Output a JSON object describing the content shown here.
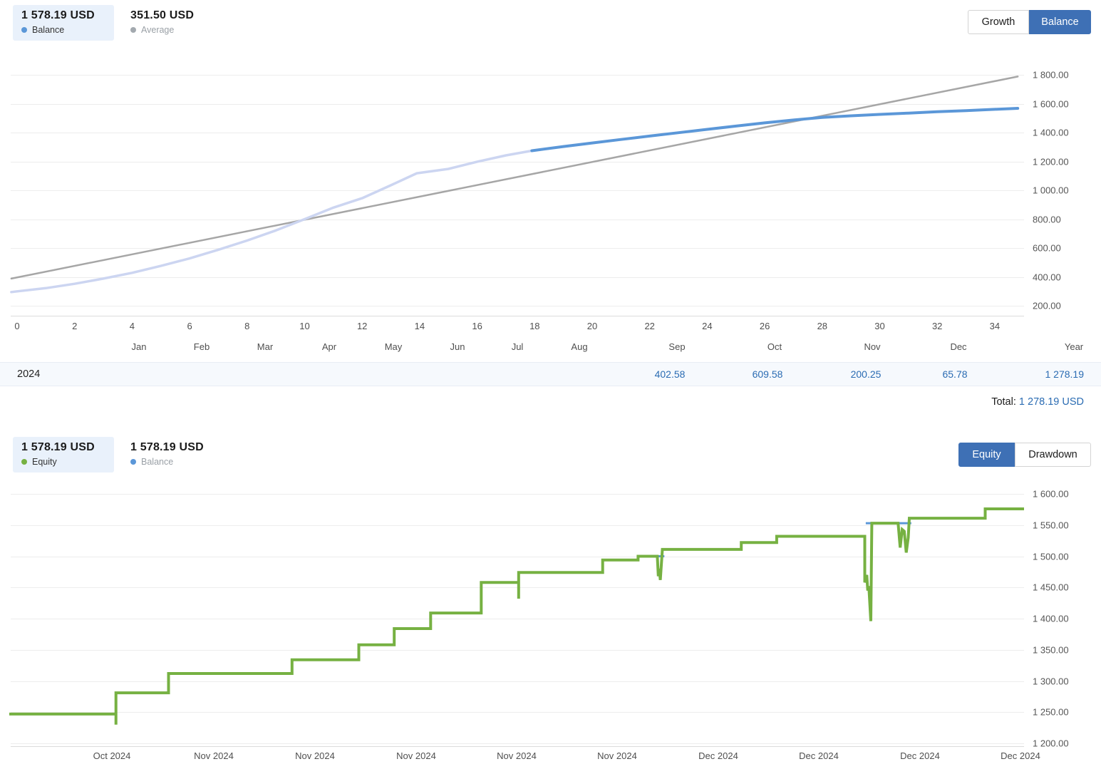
{
  "top_chart": {
    "legend": [
      {
        "value": "1 578.19 USD",
        "label": "Balance",
        "dot_color": "#5b97d8"
      },
      {
        "value": "351.50 USD",
        "label": "Average",
        "dot_color": "#a3a9af"
      }
    ],
    "tabs": [
      {
        "label": "Growth",
        "selected": false
      },
      {
        "label": "Balance",
        "selected": true
      }
    ],
    "y_tick_labels": [
      "1 800.00",
      "1 600.00",
      "1 400.00",
      "1 200.00",
      "1 000.00",
      "800.00",
      "600.00",
      "400.00",
      "200.00"
    ],
    "week_tick_labels": [
      "0",
      "2",
      "4",
      "6",
      "8",
      "10",
      "12",
      "14",
      "16",
      "18",
      "20",
      "22",
      "24",
      "26",
      "28",
      "30",
      "32",
      "34"
    ],
    "month_tick_labels": [
      "Jan",
      "Feb",
      "Mar",
      "Apr",
      "May",
      "Jun",
      "Jul",
      "Aug",
      "Sep",
      "Oct",
      "Nov",
      "Dec",
      "Year"
    ]
  },
  "monthly_table": {
    "year": "2024",
    "cells": [
      {
        "month": "Sep",
        "value": "402.58"
      },
      {
        "month": "Oct",
        "value": "609.58"
      },
      {
        "month": "Nov",
        "value": "200.25"
      },
      {
        "month": "Dec",
        "value": "65.78"
      },
      {
        "month": "Year",
        "value": "1 278.19"
      }
    ],
    "total_label": "Total:",
    "total_value": "1 278.19 USD"
  },
  "bottom_chart": {
    "legend": [
      {
        "value": "1 578.19 USD",
        "label": "Equity",
        "dot_color": "#76b142"
      },
      {
        "value": "1 578.19 USD",
        "label": "Balance",
        "dot_color": "#5b97d8"
      }
    ],
    "tabs": [
      {
        "label": "Equity",
        "selected": true
      },
      {
        "label": "Drawdown",
        "selected": false
      }
    ],
    "y_tick_labels": [
      "1 600.00",
      "1 550.00",
      "1 500.00",
      "1 450.00",
      "1 400.00",
      "1 350.00",
      "1 300.00",
      "1 250.00",
      "1 200.00"
    ],
    "x_tick_labels": [
      "Oct 2024",
      "Nov 2024",
      "Nov 2024",
      "Nov 2024",
      "Nov 2024",
      "Nov 2024",
      "Dec 2024",
      "Dec 2024",
      "Dec 2024",
      "Dec 2024"
    ]
  },
  "colors": {
    "balance_blue": "#5b97d8",
    "early_balance_lavender": "#ccd5f1",
    "average_gray": "#a6a6a6",
    "equity_green": "#76b142",
    "selected_tab_blue": "#3e70b5",
    "table_value_blue": "#2b6cb3",
    "legend_highlight": "#e9f1fb"
  },
  "chart_data": [
    {
      "type": "line",
      "title": "Balance by week of 2024 (USD)",
      "ylabel": "USD",
      "ylim": [
        200,
        1800
      ],
      "x_unit": "week number (0-34)",
      "y_ticks": [
        1800,
        1600,
        1400,
        1200,
        1000,
        800,
        600,
        400,
        200
      ],
      "series": [
        {
          "name": "balance_early_period",
          "color": "#ccd5f1",
          "points": [
            [
              -0.2,
              295
            ],
            [
              0,
              300
            ],
            [
              1,
              322
            ],
            [
              2,
              352
            ],
            [
              3,
              388
            ],
            [
              4,
              428
            ],
            [
              5,
              476
            ],
            [
              6,
              528
            ],
            [
              7,
              588
            ],
            [
              8,
              652
            ],
            [
              9,
              722
            ],
            [
              10,
              800
            ],
            [
              11,
              880
            ],
            [
              12,
              945
            ],
            [
              13,
              1035
            ],
            [
              13.9,
              1118
            ],
            [
              15,
              1148
            ],
            [
              16,
              1198
            ],
            [
              17,
              1242
            ],
            [
              17.9,
              1274
            ]
          ]
        },
        {
          "name": "balance",
          "color": "#5b97d8",
          "points": [
            [
              17.9,
              1274
            ],
            [
              19,
              1303
            ],
            [
              20,
              1328
            ],
            [
              21,
              1352
            ],
            [
              22,
              1376
            ],
            [
              23,
              1399
            ],
            [
              24,
              1422
            ],
            [
              25,
              1445
            ],
            [
              26,
              1467
            ],
            [
              27,
              1487
            ],
            [
              28,
              1505
            ],
            [
              29,
              1516
            ],
            [
              30,
              1526
            ],
            [
              31,
              1535
            ],
            [
              32,
              1544
            ],
            [
              33,
              1552
            ],
            [
              34,
              1561
            ],
            [
              34.8,
              1568
            ]
          ]
        },
        {
          "name": "average_trend",
          "color": "#a6a6a6",
          "points": [
            [
              -0.2,
              388
            ],
            [
              34.8,
              1788
            ]
          ]
        }
      ]
    },
    {
      "type": "line",
      "title": "Equity (USD), Oct 2024 - Dec 2024",
      "ylim": [
        1200,
        1600
      ],
      "x_unit": "fraction of visible date range (Oct 2024 - Dec 2024)",
      "y_ticks": [
        1600,
        1550,
        1500,
        1450,
        1400,
        1350,
        1300,
        1250,
        1200
      ],
      "series": [
        {
          "name": "balance_overlay",
          "color": "#5b97d8",
          "segments": [
            [
              [
                0.62,
                1500
              ],
              [
                0.646,
                1500
              ]
            ],
            [
              [
                0.845,
                1553
              ],
              [
                0.89,
                1553
              ]
            ]
          ]
        },
        {
          "name": "equity",
          "color": "#76b142",
          "points": [
            [
              0.0,
              1247
            ],
            [
              0.104,
              1247
            ],
            [
              0.104,
              1230
            ],
            [
              0.104,
              1281
            ],
            [
              0.156,
              1281
            ],
            [
              0.156,
              1312
            ],
            [
              0.278,
              1312
            ],
            [
              0.278,
              1334
            ],
            [
              0.344,
              1334
            ],
            [
              0.344,
              1358
            ],
            [
              0.379,
              1358
            ],
            [
              0.379,
              1384
            ],
            [
              0.415,
              1384
            ],
            [
              0.415,
              1409
            ],
            [
              0.465,
              1409
            ],
            [
              0.465,
              1458
            ],
            [
              0.502,
              1458
            ],
            [
              0.502,
              1432
            ],
            [
              0.502,
              1474
            ],
            [
              0.585,
              1474
            ],
            [
              0.585,
              1494
            ],
            [
              0.62,
              1494
            ],
            [
              0.62,
              1500
            ],
            [
              0.639,
              1500
            ],
            [
              0.64,
              1468
            ],
            [
              0.641,
              1480
            ],
            [
              0.642,
              1462
            ],
            [
              0.644,
              1511
            ],
            [
              0.722,
              1511
            ],
            [
              0.722,
              1522
            ],
            [
              0.757,
              1522
            ],
            [
              0.757,
              1532
            ],
            [
              0.844,
              1532
            ],
            [
              0.844,
              1458
            ],
            [
              0.846,
              1470
            ],
            [
              0.847,
              1445
            ],
            [
              0.848,
              1452
            ],
            [
              0.85,
              1396
            ],
            [
              0.851,
              1553
            ],
            [
              0.877,
              1553
            ],
            [
              0.879,
              1514
            ],
            [
              0.881,
              1543
            ],
            [
              0.883,
              1540
            ],
            [
              0.885,
              1506
            ],
            [
              0.887,
              1530
            ],
            [
              0.888,
              1561
            ],
            [
              0.963,
              1561
            ],
            [
              0.963,
              1576
            ],
            [
              1.0,
              1576
            ]
          ]
        }
      ]
    }
  ]
}
